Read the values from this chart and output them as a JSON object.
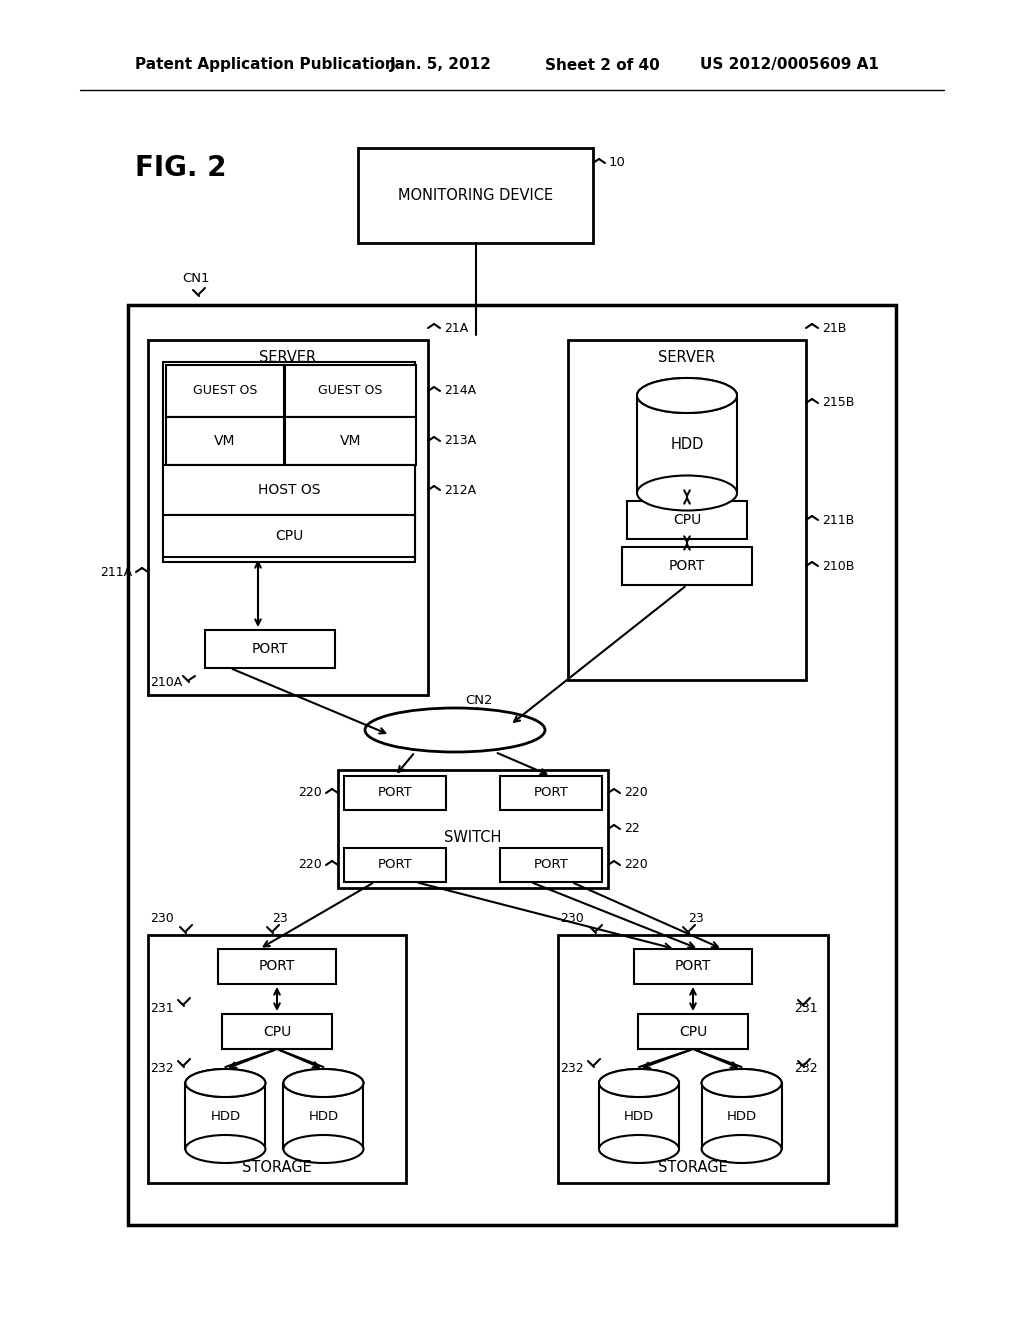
{
  "bg_color": "#ffffff",
  "header_text": "Patent Application Publication",
  "header_date": "Jan. 5, 2012",
  "header_sheet": "Sheet 2 of 40",
  "header_patent": "US 2012/0005609 A1",
  "fig_label": "FIG. 2",
  "monitoring_device_label": "MONITORING DEVICE",
  "ref_10": "10",
  "cn1_label": "CN1",
  "cn2_label": "CN2",
  "server_label": "SERVER",
  "ref_21A": "21A",
  "ref_21B": "21B",
  "guest_os_label": "GUEST OS",
  "vm_label": "VM",
  "host_os_label": "HOST OS",
  "cpu_label": "CPU",
  "port_label": "PORT",
  "hdd_label": "HDD",
  "switch_label": "SWITCH",
  "storage_label": "STORAGE",
  "ref_214A": "214A",
  "ref_213A": "213A",
  "ref_212A": "212A",
  "ref_211A": "211A",
  "ref_210A": "210A",
  "ref_215B": "215B",
  "ref_211B": "211B",
  "ref_210B": "210B",
  "ref_220": "220",
  "ref_22": "22",
  "ref_230": "230",
  "ref_23": "23",
  "ref_231": "231",
  "ref_232": "232"
}
